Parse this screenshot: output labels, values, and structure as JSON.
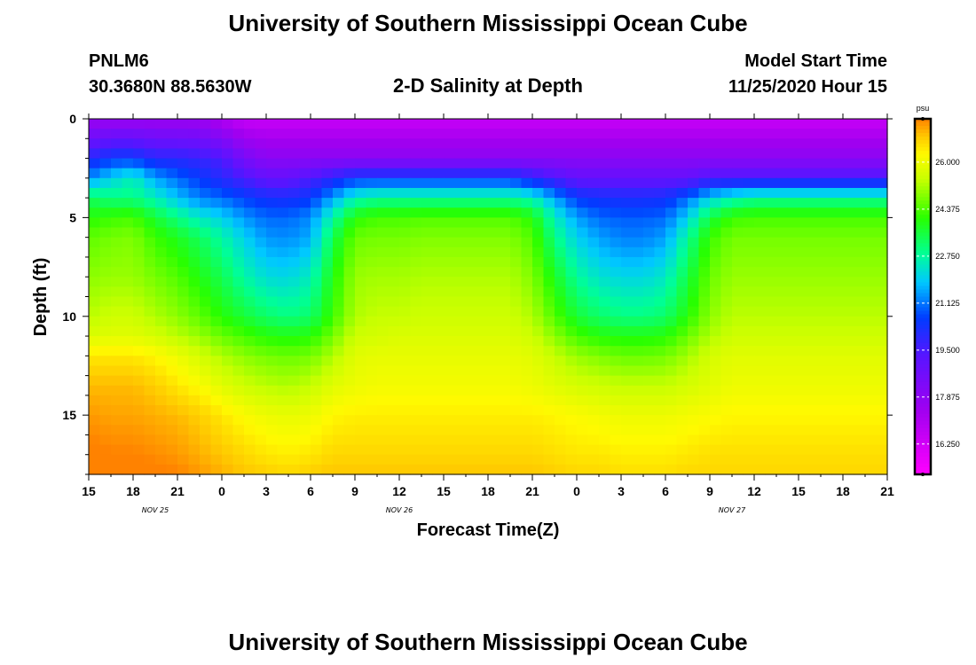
{
  "header": {
    "title_top": "University of Southern Mississippi Ocean Cube",
    "title_bottom": "University of Southern Mississippi Ocean Cube",
    "station_id": "PNLM6",
    "station_coords": "30.3680N 88.5630W",
    "plot_title": "2-D Salinity at Depth",
    "model_start_label": "Model Start Time",
    "model_start_value": "11/25/2020 Hour 15"
  },
  "chart_data": {
    "type": "heatmap",
    "title": "2-D Salinity at Depth",
    "xlabel": "Forecast Time(Z)",
    "ylabel": "Depth (ft)",
    "x_ticks": [
      "15",
      "18",
      "21",
      "0",
      "3",
      "6",
      "9",
      "12",
      "15",
      "18",
      "21",
      "0",
      "3",
      "6",
      "9",
      "12",
      "15",
      "18",
      "21"
    ],
    "x_range_hours": [
      0,
      54
    ],
    "date_labels": [
      {
        "text": "NOV 25",
        "hour": 4.5
      },
      {
        "text": "NOV 26",
        "hour": 21
      },
      {
        "text": "NOV 27",
        "hour": 43.5
      }
    ],
    "y_ticks": [
      0,
      5,
      10,
      15
    ],
    "ylim": [
      0,
      18
    ],
    "colorbar": {
      "unit": "psu",
      "vmin": 15.2,
      "vmax": 27.5,
      "ticks": [
        "26.000",
        "24.375",
        "22.750",
        "21.125",
        "19.500",
        "17.875",
        "16.250"
      ],
      "tick_values": [
        26.0,
        24.375,
        22.75,
        21.125,
        19.5,
        17.875,
        16.25
      ]
    },
    "cols_hours": [
      0,
      1.5,
      3,
      4.5,
      6,
      7.5,
      9,
      10.5,
      12,
      13.5,
      15,
      16.5,
      18,
      19.5,
      21,
      22.5,
      24,
      25.5,
      27,
      28.5,
      30,
      31.5,
      33,
      34.5,
      36,
      37.5,
      39,
      40.5,
      42,
      43.5,
      45,
      46.5,
      48,
      49.5,
      51,
      52.5,
      54
    ],
    "grid_depths_ft": [
      0,
      2,
      3,
      4,
      5,
      6,
      8,
      10,
      11,
      12,
      13.5,
      15,
      17,
      18
    ],
    "salinity_psu": [
      [
        17.5,
        17.5,
        17.5,
        17.5,
        17.5,
        17.5,
        17.0,
        16.5,
        16.5,
        16.5,
        16.5,
        16.5,
        16.5,
        16.5,
        16.5,
        16.5,
        16.5,
        16.5,
        16.5,
        16.5,
        16.5,
        16.5,
        16.5,
        16.5,
        16.5,
        16.5,
        16.5,
        16.5,
        16.5,
        16.5,
        16.5,
        16.5,
        16.5,
        16.5,
        16.5,
        16.5,
        16.5
      ],
      [
        20.0,
        20.5,
        20.5,
        20.0,
        20.0,
        19.8,
        19.5,
        18.5,
        18.0,
        18.0,
        18.0,
        18.0,
        18.0,
        18.0,
        18.0,
        18.0,
        18.0,
        18.0,
        18.0,
        18.0,
        18.0,
        18.0,
        18.0,
        18.0,
        18.0,
        18.0,
        18.0,
        18.0,
        18.0,
        18.0,
        18.0,
        18.0,
        18.0,
        18.0,
        18.0,
        18.0,
        18.0
      ],
      [
        21.3,
        22.0,
        22.5,
        21.5,
        21.0,
        20.5,
        20.0,
        19.5,
        19.0,
        19.0,
        19.5,
        20.0,
        20.5,
        20.5,
        20.5,
        20.5,
        20.5,
        20.5,
        20.5,
        20.5,
        20.0,
        19.5,
        19.0,
        19.0,
        19.0,
        19.0,
        19.0,
        19.0,
        19.5,
        19.5,
        19.5,
        19.5,
        19.5,
        19.5,
        19.5,
        19.5,
        19.5
      ],
      [
        23.3,
        23.0,
        23.0,
        22.5,
        21.8,
        21.2,
        21.0,
        20.6,
        20.3,
        20.2,
        20.5,
        21.5,
        22.5,
        22.8,
        22.8,
        22.8,
        22.8,
        22.8,
        22.8,
        22.8,
        22.5,
        21.5,
        20.5,
        20.3,
        20.2,
        20.2,
        20.3,
        21.0,
        22.0,
        22.5,
        22.8,
        22.8,
        22.8,
        22.8,
        22.8,
        22.8,
        22.8
      ],
      [
        24.0,
        24.2,
        24.3,
        23.6,
        23.0,
        22.4,
        22.0,
        21.4,
        21.0,
        21.0,
        21.3,
        22.7,
        24.0,
        24.3,
        24.3,
        24.4,
        24.4,
        24.4,
        24.4,
        24.4,
        24.0,
        22.5,
        21.5,
        21.0,
        20.9,
        20.9,
        21.0,
        22.0,
        23.5,
        24.2,
        24.3,
        24.3,
        24.3,
        24.3,
        24.3,
        24.3,
        24.3
      ],
      [
        24.5,
        24.7,
        24.8,
        24.2,
        23.8,
        23.3,
        22.7,
        22.0,
        21.4,
        21.3,
        21.6,
        23.4,
        24.6,
        24.7,
        24.7,
        24.8,
        24.8,
        24.8,
        24.8,
        24.8,
        24.4,
        23.0,
        22.0,
        21.5,
        21.2,
        21.2,
        21.5,
        22.8,
        24.2,
        24.7,
        24.7,
        24.7,
        24.7,
        24.7,
        24.7,
        24.7,
        24.7
      ],
      [
        24.9,
        25.0,
        25.0,
        24.7,
        24.4,
        23.9,
        23.4,
        22.7,
        22.2,
        22.1,
        22.5,
        23.9,
        25.0,
        25.1,
        25.1,
        25.2,
        25.2,
        25.2,
        25.2,
        25.2,
        24.8,
        23.8,
        22.8,
        22.3,
        22.1,
        22.1,
        22.4,
        23.5,
        24.6,
        25.0,
        25.0,
        25.0,
        25.0,
        25.0,
        25.0,
        25.0,
        25.0
      ],
      [
        25.3,
        25.5,
        25.5,
        25.2,
        24.9,
        24.5,
        24.0,
        23.6,
        23.2,
        23.0,
        23.2,
        24.2,
        25.2,
        25.4,
        25.4,
        25.5,
        25.5,
        25.5,
        25.5,
        25.5,
        25.2,
        24.4,
        23.6,
        23.2,
        23.0,
        23.0,
        23.2,
        24.0,
        24.9,
        25.3,
        25.3,
        25.3,
        25.3,
        25.3,
        25.3,
        25.3,
        25.3
      ],
      [
        25.7,
        25.8,
        25.8,
        25.6,
        25.3,
        25.0,
        24.6,
        24.3,
        24.0,
        23.9,
        24.0,
        24.7,
        25.5,
        25.6,
        25.7,
        25.7,
        25.7,
        25.7,
        25.7,
        25.7,
        25.5,
        24.9,
        24.3,
        24.0,
        23.9,
        23.9,
        24.0,
        24.6,
        25.2,
        25.5,
        25.5,
        25.5,
        25.5,
        25.5,
        25.5,
        25.5,
        25.5
      ],
      [
        26.5,
        26.5,
        26.5,
        26.3,
        26.0,
        25.6,
        25.2,
        24.9,
        24.7,
        24.6,
        24.7,
        25.2,
        25.8,
        25.9,
        25.9,
        25.9,
        25.9,
        25.9,
        25.9,
        25.9,
        25.8,
        25.4,
        25.0,
        24.8,
        24.6,
        24.6,
        24.7,
        25.1,
        25.6,
        25.8,
        25.8,
        25.8,
        25.8,
        25.8,
        25.8,
        25.8,
        25.8
      ],
      [
        27.0,
        27.0,
        27.0,
        26.8,
        26.5,
        26.2,
        25.8,
        25.5,
        25.3,
        25.2,
        25.4,
        25.8,
        26.0,
        26.1,
        26.1,
        26.1,
        26.1,
        26.1,
        26.1,
        26.1,
        26.0,
        25.8,
        25.6,
        25.5,
        25.4,
        25.4,
        25.4,
        25.6,
        25.8,
        26.0,
        26.0,
        26.0,
        26.0,
        26.0,
        26.0,
        26.0,
        26.0
      ],
      [
        27.3,
        27.2,
        27.2,
        27.1,
        27.0,
        26.8,
        26.5,
        26.2,
        26.0,
        25.9,
        26.0,
        26.3,
        26.4,
        26.4,
        26.4,
        26.4,
        26.4,
        26.4,
        26.4,
        26.4,
        26.4,
        26.3,
        26.2,
        26.1,
        26.0,
        26.0,
        26.0,
        26.1,
        26.2,
        26.3,
        26.3,
        26.3,
        26.3,
        26.3,
        26.3,
        26.3,
        26.3
      ],
      [
        27.6,
        27.5,
        27.5,
        27.4,
        27.3,
        27.1,
        26.9,
        26.7,
        26.5,
        26.4,
        26.5,
        26.7,
        26.7,
        26.7,
        26.7,
        26.7,
        26.7,
        26.7,
        26.7,
        26.7,
        26.7,
        26.6,
        26.5,
        26.5,
        26.4,
        26.4,
        26.4,
        26.5,
        26.6,
        26.6,
        26.6,
        26.6,
        26.6,
        26.6,
        26.6,
        26.6,
        26.6
      ],
      [
        27.8,
        27.7,
        27.7,
        27.6,
        27.5,
        27.3,
        27.1,
        26.9,
        26.8,
        26.7,
        26.8,
        26.9,
        26.9,
        26.9,
        26.9,
        26.9,
        26.9,
        26.9,
        26.9,
        26.9,
        26.9,
        26.8,
        26.7,
        26.7,
        26.6,
        26.6,
        26.6,
        26.7,
        26.7,
        26.7,
        26.7,
        26.7,
        26.7,
        26.7,
        26.7,
        26.7,
        26.7
      ]
    ]
  }
}
